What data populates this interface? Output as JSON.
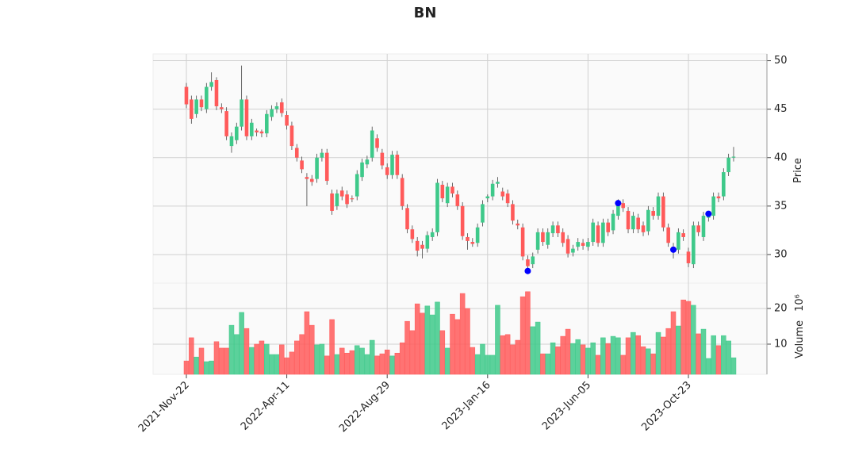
{
  "chart_data": {
    "type": "candlestick",
    "title": "BN",
    "ylabel": "Price",
    "y2label": "Volume",
    "y2_offset": "10⁶",
    "x": [
      "2021-Nov-22",
      null,
      null,
      null,
      null,
      null,
      null,
      null,
      null,
      null,
      null,
      null,
      null,
      null,
      null,
      null,
      null,
      null,
      null,
      null,
      "2022-Apr-11",
      null,
      null,
      null,
      null,
      null,
      null,
      null,
      null,
      null,
      null,
      null,
      null,
      null,
      null,
      null,
      null,
      null,
      null,
      null,
      "2022-Aug-29",
      null,
      null,
      null,
      null,
      null,
      null,
      null,
      null,
      null,
      null,
      null,
      null,
      null,
      null,
      null,
      null,
      null,
      null,
      null,
      "2023-Jan-16",
      null,
      null,
      null,
      null,
      null,
      null,
      null,
      null,
      null,
      null,
      null,
      null,
      null,
      null,
      null,
      null,
      null,
      null,
      null,
      "2023-Jun-05",
      null,
      null,
      null,
      null,
      null,
      null,
      null,
      null,
      null,
      null,
      null,
      null,
      null,
      null,
      null,
      null,
      null,
      null,
      null,
      "2023-Oct-23",
      null,
      null,
      null,
      null,
      null,
      null,
      null,
      null,
      null
    ],
    "open": [
      47.3,
      46,
      44.5,
      46,
      45,
      47.3,
      48,
      45.2,
      44.8,
      41.2,
      41.8,
      43.2,
      46,
      42.2,
      42.8,
      42.7,
      42.5,
      44.2,
      45,
      45.7,
      44.4,
      43.3,
      41,
      39.7,
      38,
      37.8,
      37.8,
      40,
      40.5,
      36.3,
      35,
      36.6,
      36.2,
      35.8,
      36,
      38,
      39.3,
      40,
      42,
      40.5,
      39,
      38.2,
      40.3,
      37.9,
      34.8,
      32.6,
      31.4,
      31,
      30.6,
      31.8,
      32.3,
      37.2,
      35.3,
      37,
      36.2,
      35,
      31.8,
      31.3,
      31.2,
      33.3,
      35.8,
      36,
      37.3,
      36.5,
      36.3,
      35.2,
      33.2,
      32.8,
      29.5,
      29,
      30.5,
      32.3,
      31,
      32.2,
      33,
      32.3,
      31.6,
      30.2,
      30.8,
      31.2,
      30.8,
      31.3,
      33,
      31.2,
      33.3,
      32.5,
      34,
      35.3,
      34.5,
      32.6,
      33.8,
      33,
      32.4,
      34.5,
      34,
      36,
      32.8,
      30.8,
      30.5,
      32.2,
      30.3,
      29,
      33,
      31.8,
      33.8,
      34,
      36,
      36,
      38.5,
      40
    ],
    "high": [
      47.7,
      46.4,
      46.4,
      46.4,
      47.7,
      48.8,
      48.3,
      45.6,
      45.2,
      42.6,
      43.6,
      49.5,
      46.4,
      44,
      43,
      42.9,
      44.9,
      45.4,
      45.7,
      46.1,
      44.8,
      43.7,
      41.4,
      40.1,
      38.4,
      38.2,
      40.4,
      40.9,
      40.9,
      36.7,
      36.7,
      37,
      36.6,
      36.1,
      38.7,
      39.9,
      40.2,
      43.2,
      42.4,
      40.9,
      39.4,
      40.7,
      40.7,
      38.3,
      35.2,
      33,
      31.8,
      31.4,
      32.4,
      32.7,
      37.8,
      37.6,
      37.4,
      37.4,
      36.6,
      35.4,
      32.2,
      31.7,
      33.2,
      35.6,
      36.2,
      37.7,
      38,
      36.9,
      36.7,
      35.6,
      33.6,
      33.2,
      29.9,
      30.2,
      32.7,
      32.7,
      32.7,
      33.4,
      33.4,
      32.7,
      32,
      31,
      31.7,
      31.6,
      31.7,
      33.7,
      33.4,
      33.7,
      33.7,
      34.6,
      35.7,
      35.7,
      34.9,
      34.4,
      34.2,
      33.4,
      35,
      34.9,
      36.4,
      36.4,
      33.2,
      31.2,
      32.7,
      32.6,
      30.7,
      33.4,
      33.4,
      34.4,
      34.2,
      36.4,
      36.4,
      38.9,
      40.4,
      41.1
    ],
    "low": [
      45.1,
      43.5,
      44.1,
      44.8,
      44.6,
      46.9,
      44.9,
      44.6,
      41.8,
      40.5,
      41.4,
      42.8,
      41.8,
      41.8,
      42.2,
      42.1,
      42.1,
      43.8,
      44.6,
      44.2,
      42.9,
      40.8,
      39.6,
      38.4,
      35,
      37.1,
      37.4,
      39.6,
      37.2,
      34.1,
      34.6,
      35.6,
      34.8,
      35.4,
      35.6,
      37.6,
      38.9,
      39.6,
      40.6,
      38.8,
      37.8,
      37.8,
      37.8,
      34.6,
      32.2,
      31.2,
      29.8,
      29.6,
      30.2,
      31.4,
      31.9,
      35.4,
      34.9,
      35.9,
      34.6,
      31.5,
      30.5,
      30.8,
      30.8,
      32.9,
      35.4,
      35.6,
      36.9,
      35.6,
      34.9,
      33.1,
      32.6,
      29.4,
      28.4,
      28.6,
      30.1,
      30.9,
      30.6,
      31.8,
      31.8,
      30.8,
      29.7,
      29.8,
      30.4,
      30.5,
      30.4,
      30.9,
      30.8,
      30.8,
      31.9,
      32.1,
      33.6,
      34.4,
      32.2,
      32.2,
      32.2,
      31.9,
      32,
      33.6,
      33.6,
      32.4,
      30.8,
      29.6,
      30.1,
      31.4,
      28.7,
      28.6,
      31.9,
      31.4,
      33.4,
      33.6,
      35.4,
      35.6,
      38.1,
      39.6
    ],
    "close": [
      45.5,
      44,
      46,
      45.2,
      47.3,
      47.8,
      45.3,
      45,
      42.2,
      42.2,
      43.2,
      46,
      42.2,
      43.6,
      42.6,
      42.5,
      44.5,
      45,
      45.3,
      44.6,
      43.3,
      41.2,
      40,
      38.8,
      37.8,
      37.5,
      40,
      40.5,
      37.6,
      34.5,
      36.3,
      36,
      35.2,
      35.7,
      38.3,
      39.5,
      39.8,
      42.8,
      41,
      39.2,
      38.2,
      40.3,
      38.2,
      35,
      32.6,
      31.6,
      30.4,
      30.6,
      32,
      32.3,
      37.4,
      35.8,
      37,
      36.3,
      35,
      31.9,
      31.4,
      31.1,
      32.8,
      35.2,
      36,
      37.3,
      37.5,
      36,
      35.3,
      33.5,
      33,
      29.8,
      28.8,
      29.8,
      32.3,
      31.3,
      32.3,
      33,
      32.2,
      31.2,
      30.1,
      30.6,
      31.3,
      30.9,
      31.3,
      33.3,
      31.2,
      33.3,
      32.3,
      34.2,
      35.3,
      34.8,
      32.6,
      34,
      32.6,
      32.3,
      34.6,
      34,
      36,
      32.8,
      31.2,
      30.4,
      32.3,
      31.8,
      29.1,
      33,
      32.3,
      34,
      34,
      36,
      35.8,
      38.5,
      40,
      40.1
    ],
    "volume": [
      5.3,
      11.8,
      6.4,
      8.9,
      5.1,
      5.3,
      10.7,
      8.9,
      8.9,
      15.3,
      12.7,
      18.9,
      14.4,
      9.1,
      10,
      10.9,
      10,
      7.1,
      7.1,
      9.8,
      6.2,
      7.8,
      10.9,
      12.7,
      19.1,
      15.3,
      9.8,
      10,
      6.7,
      16.9,
      7.1,
      8.9,
      7.5,
      8.2,
      9.6,
      8.9,
      7.1,
      11.1,
      6.7,
      7.3,
      8.4,
      6.7,
      7.5,
      10.4,
      16.4,
      13.8,
      21.3,
      18.7,
      20.7,
      18.2,
      21.8,
      13.8,
      8.9,
      18.4,
      16.9,
      24.2,
      20,
      9.1,
      7.1,
      10,
      6.9,
      6.9,
      20.9,
      12.4,
      12.7,
      9.8,
      11.1,
      23.3,
      24.7,
      14.9,
      16.2,
      7.3,
      7.3,
      10.4,
      9.3,
      12.2,
      14.2,
      10.2,
      11.3,
      9.8,
      8.9,
      10.4,
      6.9,
      11.8,
      10.2,
      12.2,
      11.8,
      6.9,
      11.8,
      13.3,
      12.4,
      9.3,
      8.7,
      7.3,
      13.3,
      12,
      14.4,
      19.1,
      15.1,
      22.4,
      22,
      20.9,
      12.9,
      14.2,
      6,
      12.4,
      9.6,
      12.4,
      10.9,
      6.2
    ],
    "markers": {
      "color": "#0000ff",
      "values": [
        null,
        null,
        null,
        null,
        null,
        null,
        null,
        null,
        null,
        null,
        null,
        null,
        null,
        null,
        null,
        null,
        null,
        null,
        null,
        null,
        null,
        null,
        null,
        null,
        null,
        null,
        null,
        null,
        null,
        null,
        null,
        null,
        null,
        null,
        null,
        null,
        null,
        null,
        null,
        null,
        null,
        null,
        null,
        null,
        null,
        null,
        null,
        null,
        null,
        null,
        null,
        null,
        null,
        null,
        null,
        null,
        null,
        null,
        null,
        null,
        null,
        null,
        null,
        null,
        null,
        null,
        null,
        null,
        28.3,
        null,
        null,
        null,
        null,
        null,
        null,
        null,
        null,
        null,
        null,
        null,
        null,
        null,
        null,
        null,
        null,
        null,
        35.3,
        null,
        null,
        null,
        null,
        null,
        null,
        null,
        null,
        null,
        null,
        30.5,
        null,
        null,
        null,
        null,
        null,
        null,
        34.2,
        null,
        null,
        null,
        null,
        null
      ]
    },
    "up_color": "#3ec98a",
    "down_color": "#ff5a5a",
    "ylim": [
      27.05,
      50.7
    ],
    "yticks": [
      30,
      35,
      40,
      45,
      50
    ],
    "y2lim": [
      1.55,
      27.1
    ],
    "y2ticks": [
      10,
      20
    ],
    "grid": true
  }
}
